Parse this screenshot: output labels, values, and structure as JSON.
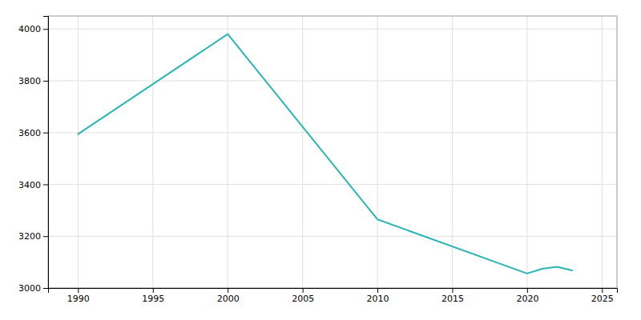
{
  "chart_data": {
    "type": "line",
    "x": [
      1990,
      2000,
      2010,
      2020,
      2021,
      2022,
      2023
    ],
    "values": [
      3594,
      3980,
      3265,
      3056,
      3074,
      3082,
      3068
    ],
    "color": "#2ab5b5",
    "xlim": [
      1988,
      2026
    ],
    "ylim": [
      3000,
      4050
    ],
    "xticks": [
      1990,
      1995,
      2000,
      2005,
      2010,
      2015,
      2020,
      2025
    ],
    "yticks": [
      3000,
      3200,
      3400,
      3600,
      3800,
      4000
    ],
    "grid": true
  }
}
